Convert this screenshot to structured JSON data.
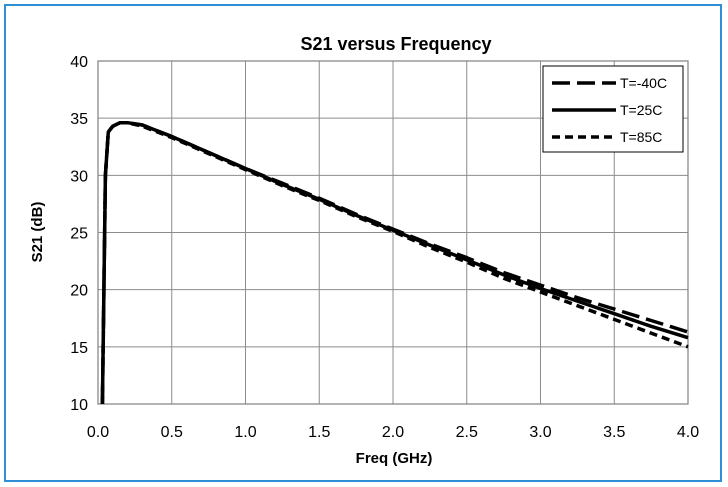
{
  "chart_data": {
    "type": "line",
    "title": "S21 versus Frequency",
    "xlabel": "Freq (GHz)",
    "ylabel": "S21 (dB)",
    "xlim": [
      0.0,
      4.0
    ],
    "ylim": [
      10,
      40
    ],
    "xticks": [
      "0.0",
      "0.5",
      "1.0",
      "1.5",
      "2.0",
      "2.5",
      "3.0",
      "3.5",
      "4.0"
    ],
    "yticks": [
      "10",
      "15",
      "20",
      "25",
      "30",
      "35",
      "40"
    ],
    "grid": true,
    "legend_position": "top-right",
    "series": [
      {
        "name": "T=-40C",
        "dash": "long-dash",
        "x": [
          0.03,
          0.04,
          0.05,
          0.07,
          0.1,
          0.15,
          0.2,
          0.3,
          0.5,
          0.75,
          1.0,
          1.25,
          1.5,
          1.75,
          2.0,
          2.25,
          2.5,
          2.75,
          3.0,
          3.25,
          3.5,
          3.75,
          4.0
        ],
        "y": [
          10.0,
          20.0,
          30.0,
          33.8,
          34.3,
          34.6,
          34.6,
          34.4,
          33.4,
          32.0,
          30.6,
          29.3,
          28.0,
          26.6,
          25.3,
          24.0,
          22.8,
          21.5,
          20.4,
          19.3,
          18.3,
          17.3,
          16.3
        ]
      },
      {
        "name": "T=25C",
        "dash": "solid",
        "x": [
          0.03,
          0.04,
          0.05,
          0.07,
          0.1,
          0.15,
          0.2,
          0.3,
          0.5,
          0.75,
          1.0,
          1.25,
          1.5,
          1.75,
          2.0,
          2.25,
          2.5,
          2.75,
          3.0,
          3.25,
          3.5,
          3.75,
          4.0
        ],
        "y": [
          10.0,
          20.0,
          30.0,
          33.8,
          34.3,
          34.6,
          34.6,
          34.4,
          33.4,
          32.0,
          30.6,
          29.2,
          27.9,
          26.5,
          25.2,
          23.9,
          22.6,
          21.3,
          20.1,
          19.0,
          17.9,
          16.8,
          15.8
        ]
      },
      {
        "name": "T=85C",
        "dash": "short-dash",
        "x": [
          0.03,
          0.04,
          0.05,
          0.07,
          0.1,
          0.15,
          0.2,
          0.3,
          0.5,
          0.75,
          1.0,
          1.25,
          1.5,
          1.75,
          2.0,
          2.25,
          2.5,
          2.75,
          3.0,
          3.25,
          3.5,
          3.75,
          4.0
        ],
        "y": [
          10.0,
          20.0,
          30.0,
          33.8,
          34.3,
          34.6,
          34.6,
          34.3,
          33.3,
          31.9,
          30.5,
          29.1,
          27.8,
          26.4,
          25.1,
          23.7,
          22.4,
          21.0,
          19.8,
          18.6,
          17.4,
          16.2,
          15.0
        ]
      }
    ]
  }
}
